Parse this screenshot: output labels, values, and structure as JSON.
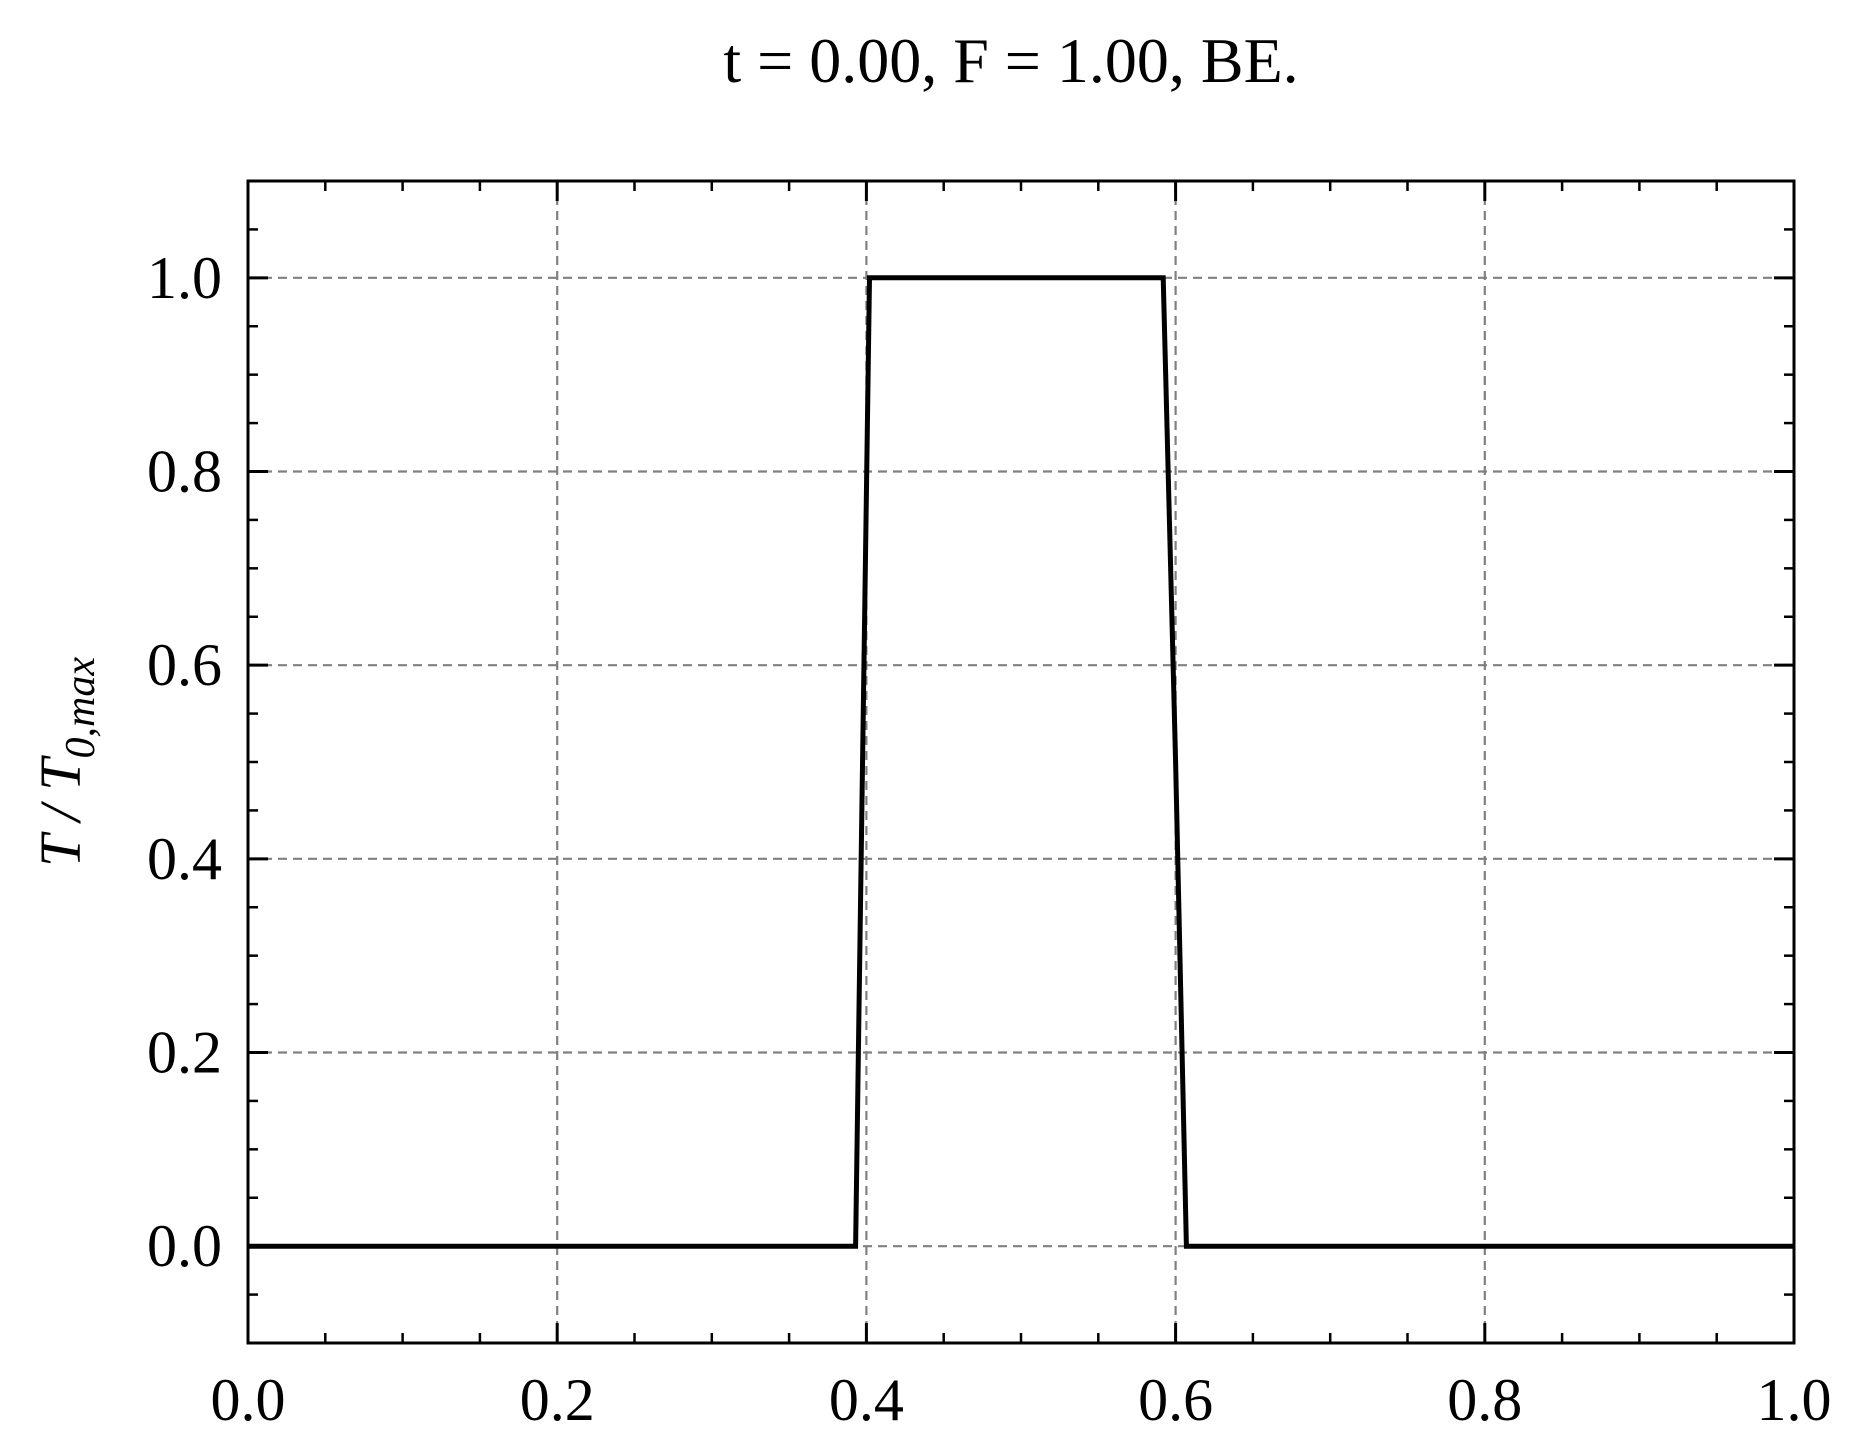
{
  "chart_data": {
    "type": "line",
    "title": "t = 0.00, F = 1.00, BE.",
    "xlabel": "",
    "ylabel": {
      "base": "T / T",
      "subscript": "0,max"
    },
    "xlim": [
      0.0,
      1.0
    ],
    "ylim": [
      -0.1,
      1.1
    ],
    "xticks": [
      0.0,
      0.2,
      0.4,
      0.6,
      0.8,
      1.0
    ],
    "xtick_labels": [
      "0.0",
      "0.2",
      "0.4",
      "0.6",
      "0.8",
      "1.0"
    ],
    "yticks": [
      0.0,
      0.2,
      0.4,
      0.6,
      0.8,
      1.0
    ],
    "ytick_labels": [
      "0.0",
      "0.2",
      "0.4",
      "0.6",
      "0.8",
      "1.0"
    ],
    "x_minor_step": 0.05,
    "y_minor_step": 0.05,
    "grid": true,
    "grid_style": "dashed",
    "tick_direction": "in",
    "series": [
      {
        "color": "#000000",
        "x": [
          0.0,
          0.393,
          0.402,
          0.5,
          0.592,
          0.6,
          0.607,
          1.0
        ],
        "y": [
          0.0,
          0.0,
          1.0,
          1.0,
          1.0,
          0.5,
          0.0,
          0.0
        ]
      }
    ],
    "colors": {
      "line": "#000000",
      "grid": "#808080",
      "frame": "#000000"
    }
  }
}
